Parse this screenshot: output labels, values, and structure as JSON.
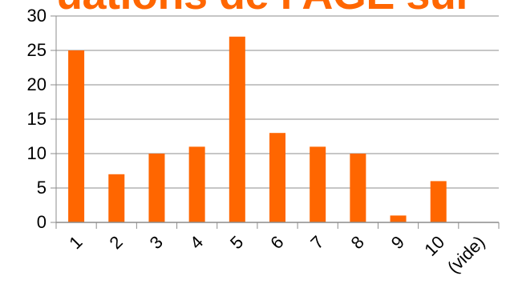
{
  "chart_data": {
    "type": "bar",
    "title": "uations de l'AGE sur",
    "categories": [
      "1",
      "2",
      "3",
      "4",
      "5",
      "6",
      "7",
      "8",
      "9",
      "10",
      "(vide)"
    ],
    "series": [
      {
        "values": [
          25,
          7,
          10,
          11,
          27,
          13,
          11,
          10,
          1,
          6,
          0
        ]
      }
    ],
    "yticks": [
      0,
      5,
      10,
      15,
      20,
      25,
      30
    ],
    "ylim": [
      0,
      30
    ],
    "xlabel": "",
    "ylabel": "",
    "grid": true,
    "bar_color": "#ff6600",
    "x_tick_rotation_deg": -45
  }
}
